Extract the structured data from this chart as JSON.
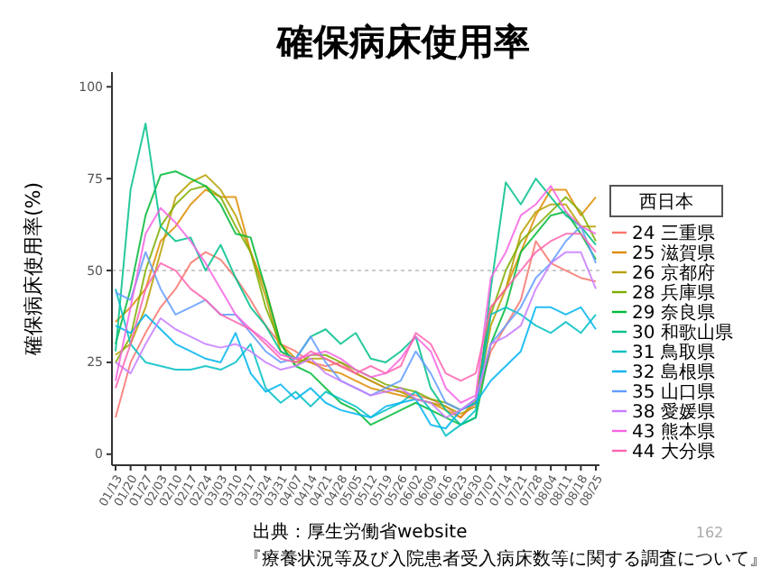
{
  "chart_data": {
    "type": "line",
    "title": "確保病床使用率",
    "ylabel": "確保病床使用率(%)",
    "legend_title": "西日本",
    "categories": [
      "01/13",
      "01/20",
      "01/27",
      "02/03",
      "02/10",
      "02/17",
      "02/24",
      "03/03",
      "03/10",
      "03/17",
      "03/24",
      "03/31",
      "04/07",
      "04/14",
      "04/21",
      "04/28",
      "05/05",
      "05/12",
      "05/19",
      "05/26",
      "06/02",
      "06/09",
      "06/16",
      "06/23",
      "06/30",
      "07/07",
      "07/14",
      "07/21",
      "07/28",
      "08/04",
      "08/11",
      "08/18",
      "08/25"
    ],
    "ylim": [
      -3,
      104
    ],
    "yticks": [
      0,
      25,
      50,
      75,
      100
    ],
    "grid": false,
    "legend": "right",
    "line_style": "solid",
    "marker": "none",
    "ref_lines": [
      {
        "axis": "y",
        "value": 50,
        "color": "#cccccc",
        "line_style": "dotted"
      }
    ],
    "annotations": [
      "出典：厚生労働省website",
      "『療養状況等及び入院患者受入病床数等に関する調査について』",
      "162"
    ],
    "series": [
      {
        "name": "24 三重県",
        "color": "#f8766d",
        "values": [
          10,
          25,
          33,
          40,
          45,
          52,
          55,
          53,
          48,
          42,
          35,
          30,
          28,
          25,
          24,
          25,
          22,
          20,
          18,
          17,
          16,
          15,
          13,
          10,
          14,
          28,
          35,
          42,
          58,
          52,
          50,
          48,
          47
        ]
      },
      {
        "name": "25 滋賀県",
        "color": "#de8c00",
        "values": [
          36,
          40,
          45,
          58,
          62,
          68,
          72,
          70,
          70,
          55,
          45,
          30,
          26,
          25,
          23,
          22,
          20,
          18,
          17,
          16,
          15,
          14,
          12,
          10,
          15,
          40,
          45,
          55,
          65,
          72,
          72,
          65,
          70
        ]
      },
      {
        "name": "26 京都府",
        "color": "#b79f00",
        "values": [
          27,
          30,
          40,
          55,
          70,
          74,
          76,
          72,
          65,
          55,
          43,
          28,
          25,
          26,
          26,
          24,
          22,
          20,
          18,
          17,
          15,
          14,
          13,
          11,
          13,
          35,
          45,
          60,
          66,
          68,
          68,
          62,
          62
        ]
      },
      {
        "name": "28 兵庫県",
        "color": "#7cae00",
        "values": [
          25,
          32,
          50,
          62,
          68,
          72,
          73,
          70,
          62,
          55,
          40,
          30,
          24,
          27,
          27,
          25,
          23,
          21,
          19,
          18,
          17,
          15,
          14,
          12,
          14,
          38,
          50,
          58,
          62,
          66,
          70,
          66,
          58
        ]
      },
      {
        "name": "29 奈良県",
        "color": "#00ba38",
        "values": [
          30,
          45,
          65,
          76,
          77,
          75,
          73,
          68,
          60,
          59,
          45,
          30,
          24,
          22,
          18,
          14,
          12,
          8,
          10,
          12,
          14,
          12,
          10,
          8,
          10,
          30,
          40,
          55,
          60,
          65,
          66,
          60,
          53
        ]
      },
      {
        "name": "30 和歌山県",
        "color": "#00c08b",
        "values": [
          28,
          72,
          90,
          62,
          58,
          59,
          50,
          57,
          48,
          40,
          35,
          28,
          26,
          32,
          34,
          30,
          33,
          26,
          25,
          28,
          32,
          18,
          12,
          8,
          10,
          45,
          74,
          68,
          75,
          70,
          65,
          62,
          57
        ]
      },
      {
        "name": "31 鳥取県",
        "color": "#00bfc4",
        "values": [
          45,
          30,
          25,
          24,
          23,
          23,
          24,
          23,
          25,
          30,
          18,
          14,
          17,
          13,
          17,
          15,
          13,
          10,
          12,
          14,
          17,
          12,
          5,
          8,
          12,
          38,
          40,
          38,
          35,
          33,
          36,
          33,
          38
        ]
      },
      {
        "name": "32 島根県",
        "color": "#00b4f0",
        "values": [
          35,
          33,
          38,
          34,
          30,
          28,
          26,
          25,
          33,
          22,
          17,
          19,
          15,
          18,
          14,
          12,
          11,
          10,
          13,
          14,
          15,
          8,
          7,
          12,
          14,
          20,
          24,
          28,
          40,
          40,
          38,
          40,
          34
        ]
      },
      {
        "name": "35 山口県",
        "color": "#619cff",
        "values": [
          44,
          42,
          55,
          45,
          38,
          40,
          42,
          38,
          38,
          33,
          28,
          25,
          26,
          32,
          25,
          20,
          18,
          16,
          18,
          20,
          28,
          22,
          14,
          12,
          15,
          30,
          35,
          40,
          48,
          52,
          58,
          62,
          52
        ]
      },
      {
        "name": "38 愛媛県",
        "color": "#c77cff",
        "values": [
          25,
          22,
          30,
          37,
          34,
          32,
          30,
          29,
          30,
          28,
          25,
          23,
          24,
          26,
          22,
          20,
          18,
          16,
          17,
          18,
          15,
          14,
          10,
          12,
          15,
          30,
          32,
          35,
          45,
          52,
          55,
          55,
          45
        ]
      },
      {
        "name": "43 熊本県",
        "color": "#f564e3",
        "values": [
          20,
          40,
          60,
          67,
          63,
          58,
          52,
          45,
          38,
          34,
          31,
          27,
          26,
          27,
          28,
          26,
          23,
          21,
          22,
          26,
          32,
          28,
          18,
          14,
          16,
          48,
          55,
          65,
          68,
          73,
          66,
          62,
          60
        ]
      },
      {
        "name": "44 大分県",
        "color": "#ff64b0",
        "values": [
          18,
          30,
          45,
          52,
          50,
          45,
          42,
          38,
          36,
          34,
          30,
          26,
          25,
          28,
          26,
          24,
          22,
          24,
          22,
          24,
          33,
          30,
          22,
          20,
          22,
          40,
          45,
          50,
          55,
          58,
          60,
          60,
          55
        ]
      }
    ]
  }
}
